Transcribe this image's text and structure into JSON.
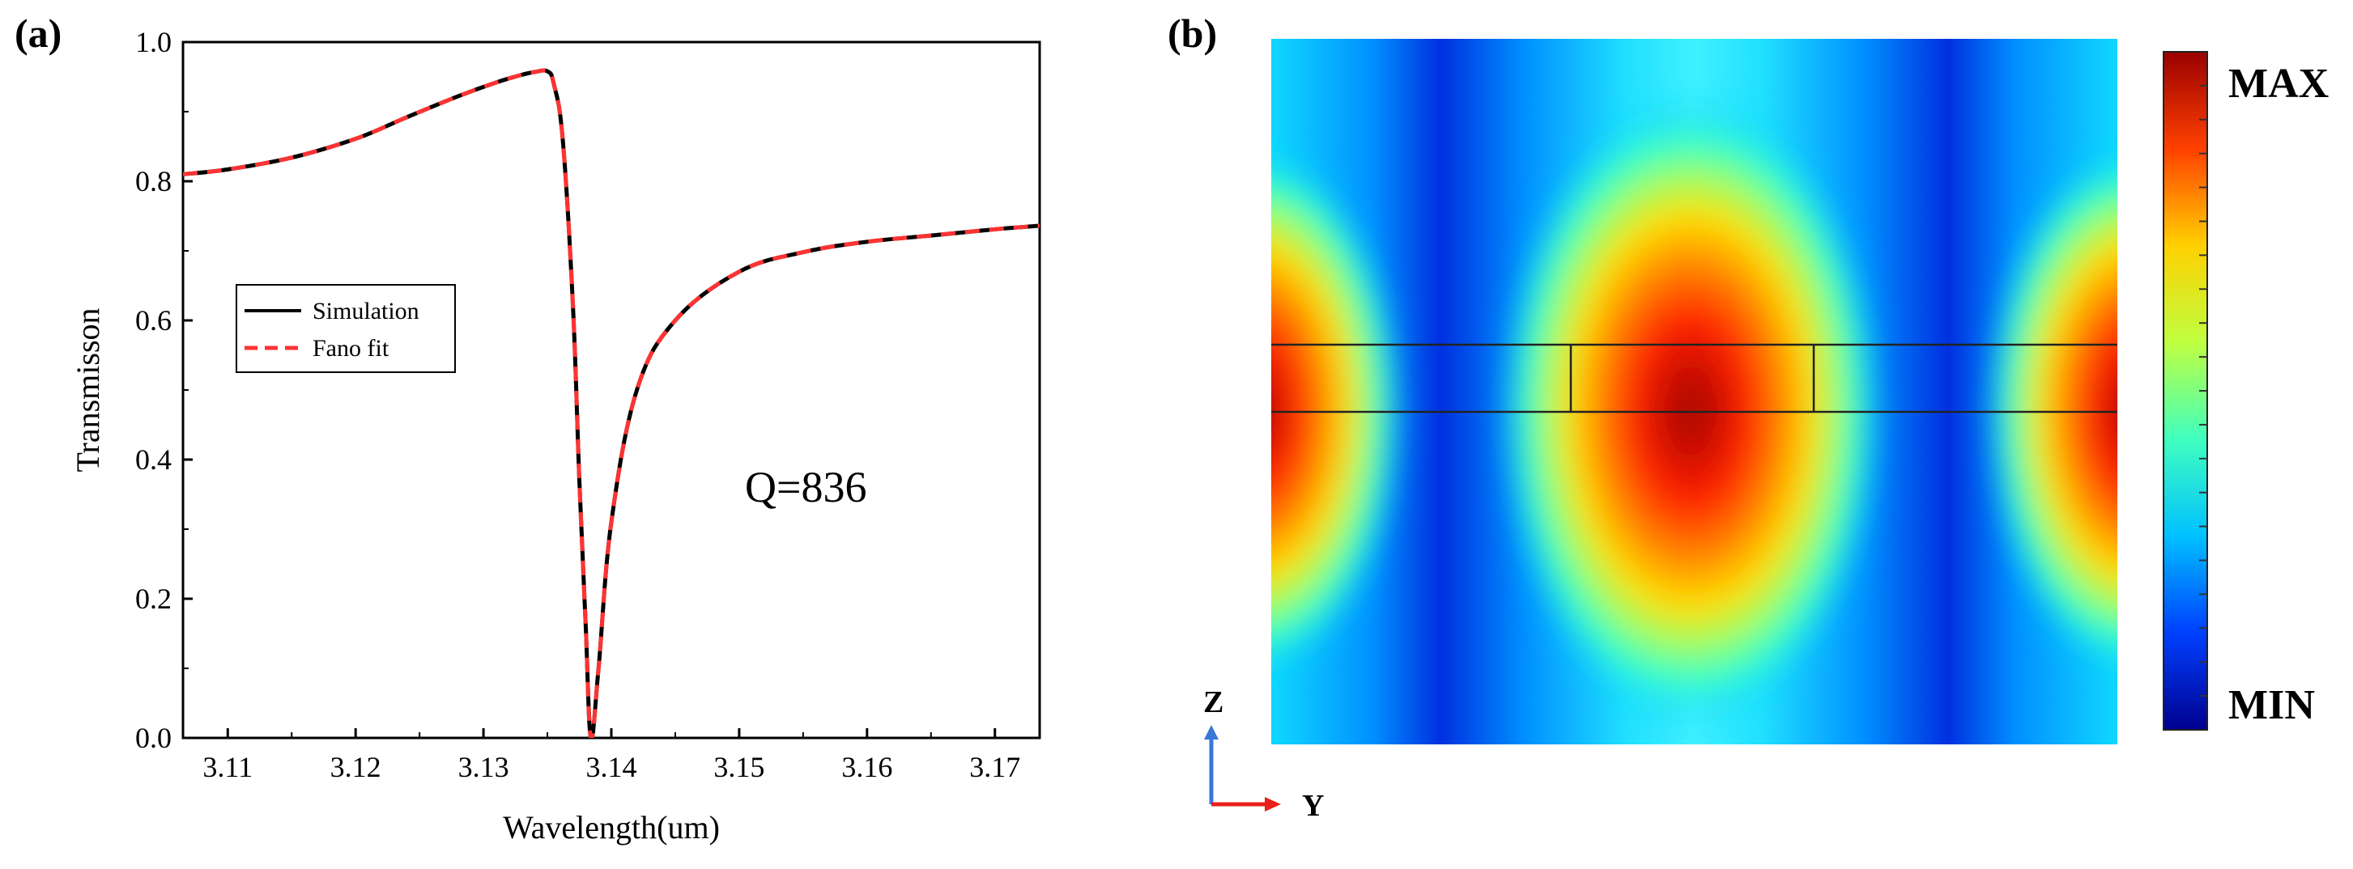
{
  "chart_data": [
    {
      "panel": "(a)",
      "type": "line",
      "title": "",
      "xlabel": "Wavelength(um)",
      "ylabel": "Transmisson",
      "xlim": [
        3.1065,
        3.1735
      ],
      "ylim": [
        0.0,
        1.0
      ],
      "xticks": [
        3.11,
        3.12,
        3.13,
        3.14,
        3.15,
        3.16,
        3.17
      ],
      "xtick_labels": [
        "3.11",
        "3.12",
        "3.13",
        "3.14",
        "3.15",
        "3.16",
        "3.17"
      ],
      "yticks": [
        0.0,
        0.2,
        0.4,
        0.6,
        0.8,
        1.0
      ],
      "ytick_labels": [
        "0.0",
        "0.2",
        "0.4",
        "0.6",
        "0.8",
        "1.0"
      ],
      "legend": {
        "placement": "center-left",
        "entries": [
          {
            "label": "Simulation",
            "color": "#000000",
            "style": "solid"
          },
          {
            "label": "Fano fit",
            "color": "#ff3333",
            "style": "dashed"
          }
        ]
      },
      "annotation": "Q=836",
      "series": [
        {
          "name": "Simulation",
          "color": "#000000",
          "x": [
            3.1065,
            3.11,
            3.115,
            3.12,
            3.124,
            3.128,
            3.131,
            3.133,
            3.134,
            3.135,
            3.1355,
            3.1362,
            3.137,
            3.1375,
            3.138,
            3.1384,
            3.139,
            3.14,
            3.142,
            3.145,
            3.15,
            3.155,
            3.16,
            3.165,
            3.17,
            3.1735
          ],
          "y": [
            0.81,
            0.817,
            0.834,
            0.861,
            0.892,
            0.922,
            0.942,
            0.953,
            0.957,
            0.958,
            0.94,
            0.86,
            0.62,
            0.37,
            0.16,
            0.0,
            0.1,
            0.31,
            0.5,
            0.6,
            0.67,
            0.698,
            0.713,
            0.722,
            0.731,
            0.736
          ]
        },
        {
          "name": "Fano fit",
          "color": "#ff3333",
          "x": [
            3.1065,
            3.11,
            3.115,
            3.12,
            3.124,
            3.128,
            3.131,
            3.133,
            3.134,
            3.135,
            3.1355,
            3.1362,
            3.137,
            3.1375,
            3.138,
            3.1384,
            3.139,
            3.14,
            3.142,
            3.145,
            3.15,
            3.155,
            3.16,
            3.165,
            3.17,
            3.1735
          ],
          "y": [
            0.81,
            0.817,
            0.834,
            0.861,
            0.892,
            0.922,
            0.942,
            0.953,
            0.957,
            0.958,
            0.94,
            0.86,
            0.62,
            0.37,
            0.16,
            0.0,
            0.1,
            0.31,
            0.5,
            0.6,
            0.67,
            0.698,
            0.713,
            0.722,
            0.731,
            0.736
          ]
        }
      ]
    },
    {
      "panel": "(b)",
      "type": "heatmap",
      "title": "",
      "colorbar": {
        "max_label": "MAX",
        "min_label": "MIN",
        "colors": [
          "#00008f",
          "#0040ff",
          "#00c0ff",
          "#40ffbf",
          "#bfff40",
          "#ffd000",
          "#ff4000",
          "#9a0000"
        ]
      },
      "axes_labels": {
        "vertical": "Z",
        "horizontal": "Y"
      },
      "field_hotspots": [
        {
          "position": "left-edge",
          "intensity": "max"
        },
        {
          "position": "center",
          "intensity": "max"
        },
        {
          "position": "right-edge",
          "intensity": "max"
        }
      ]
    }
  ]
}
